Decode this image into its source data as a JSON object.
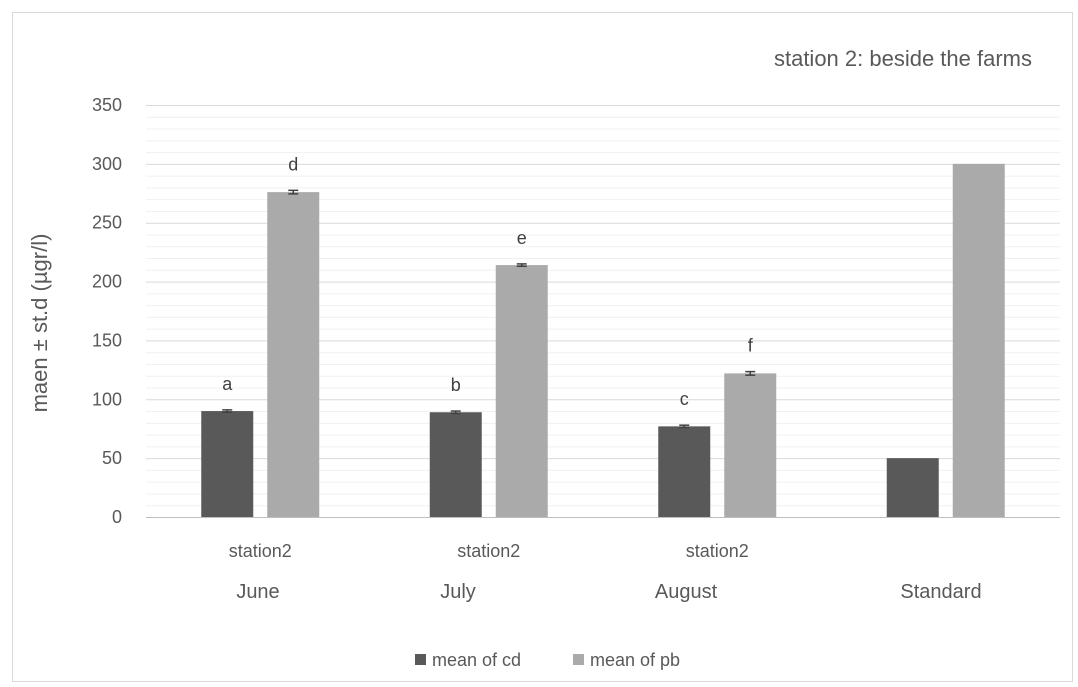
{
  "chart_data": {
    "type": "bar",
    "title": "station 2: beside the farms",
    "xlabel": "",
    "ylabel": "maen ± st.d (µgr/l)",
    "ylim": [
      0,
      350
    ],
    "ytick_step": 50,
    "yticks": [
      "0",
      "50",
      "100",
      "150",
      "200",
      "250",
      "300",
      "350"
    ],
    "minor_grid_step": 10,
    "grid": true,
    "legend_position": "bottom",
    "categories": [
      {
        "sub": "station2",
        "main": "June"
      },
      {
        "sub": "station2",
        "main": "July"
      },
      {
        "sub": "station2",
        "main": "August"
      },
      {
        "sub": "",
        "main": "Standard"
      }
    ],
    "series": [
      {
        "name": "mean of cd",
        "color": "#595959",
        "values": [
          90,
          89,
          77,
          50
        ],
        "errors": [
          1,
          1,
          1,
          null
        ],
        "letters": [
          "a",
          "b",
          "c",
          ""
        ]
      },
      {
        "name": "mean of pb",
        "color": "#aaaaaa",
        "values": [
          276,
          214,
          122,
          300
        ],
        "errors": [
          1.5,
          1,
          1.5,
          null
        ],
        "letters": [
          "d",
          "e",
          "f",
          ""
        ]
      }
    ]
  }
}
